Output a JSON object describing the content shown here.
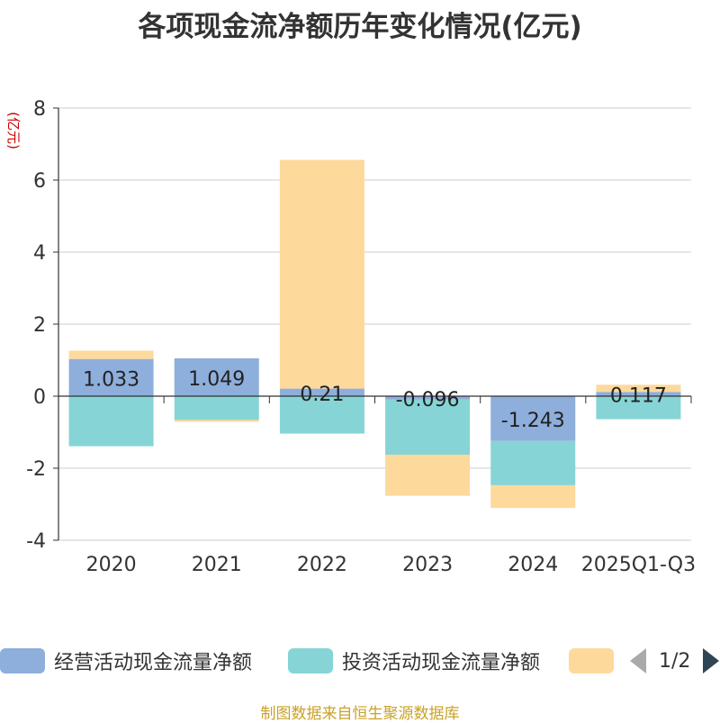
{
  "title": "各项现金流净额历年变化情况(亿元)",
  "source": "制图数据来自恒生聚源数据库",
  "pager": {
    "text": "1/2"
  },
  "chart_data": {
    "type": "bar",
    "stacked": true,
    "title": "各项现金流净额历年变化情况(亿元)",
    "ylabel": "(亿元)",
    "ylim": [
      -4,
      8
    ],
    "yticks": [
      -4,
      -2,
      0,
      2,
      4,
      6,
      8
    ],
    "grid": true,
    "legend_position": "bottom",
    "categories": [
      "2020",
      "2021",
      "2022",
      "2023",
      "2024",
      "2025Q1-Q3"
    ],
    "series": [
      {
        "name": "经营活动现金流量净额",
        "color": "#8eaedb",
        "values": [
          1.033,
          1.049,
          0.21,
          -0.096,
          -1.243,
          0.117
        ],
        "labels": [
          "1.033",
          "1.049",
          "0.21",
          "-0.096",
          "-1.243",
          "0.117"
        ]
      },
      {
        "name": "投资活动现金流量净额",
        "color": "#86d4d6",
        "values": [
          -1.39,
          -0.66,
          -1.04,
          -1.53,
          -1.23,
          -0.64
        ]
      },
      {
        "name": "",
        "color": "#fdd99b",
        "values": [
          0.23,
          -0.05,
          6.35,
          -1.14,
          -0.63,
          0.2
        ]
      }
    ]
  }
}
